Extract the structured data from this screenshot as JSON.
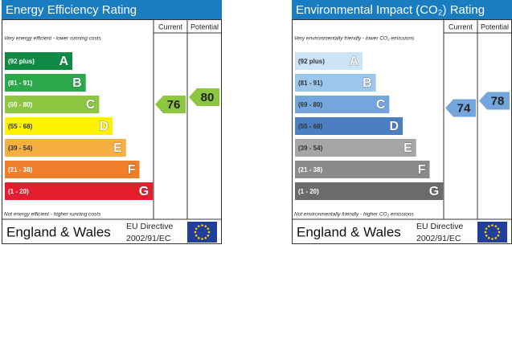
{
  "panels": [
    {
      "title": "Energy Efficiency Rating",
      "columns": [
        "Current",
        "Potential"
      ],
      "top_label": "Very energy efficient - lower running costs",
      "bottom_label": "Not energy efficient - higher running costs",
      "bands": [
        {
          "range": "(92 plus)",
          "letter": "A",
          "color": "#0f8a44",
          "text_color": "#fff"
        },
        {
          "range": "(81 - 91)",
          "letter": "B",
          "color": "#2aa84a",
          "text_color": "#fff"
        },
        {
          "range": "(69 - 80)",
          "letter": "C",
          "color": "#8dc63f",
          "text_color": "#fff"
        },
        {
          "range": "(55 - 68)",
          "letter": "D",
          "color": "#fff200",
          "text_color": "#333"
        },
        {
          "range": "(39 - 54)",
          "letter": "E",
          "color": "#f6b042",
          "text_color": "#333"
        },
        {
          "range": "(21 - 38)",
          "letter": "F",
          "color": "#ef7d29",
          "text_color": "#fff"
        },
        {
          "range": "(1 - 20)",
          "letter": "G",
          "color": "#e41e2d",
          "text_color": "#fff"
        }
      ],
      "current": {
        "value": 76,
        "color": "#8dc63f"
      },
      "potential": {
        "value": 80,
        "color": "#8dc63f"
      },
      "footer": {
        "region": "England & Wales",
        "directive": [
          "EU Directive",
          "2002/91/EC"
        ]
      }
    },
    {
      "title": "Environmental Impact (CO₂) Rating",
      "columns": [
        "Current",
        "Potential"
      ],
      "top_label": "Very environmentally friendly - lower CO₂ emissions",
      "bottom_label": "Not environmentally friendly - higher CO₂ emissions",
      "bands": [
        {
          "range": "(92 plus)",
          "letter": "A",
          "color": "#cde3f6",
          "text_color": "#333"
        },
        {
          "range": "(81 - 91)",
          "letter": "B",
          "color": "#9cc6ec",
          "text_color": "#333"
        },
        {
          "range": "(69 - 80)",
          "letter": "C",
          "color": "#72a6dc",
          "text_color": "#333"
        },
        {
          "range": "(55 - 68)",
          "letter": "D",
          "color": "#4c7ec2",
          "text_color": "#333"
        },
        {
          "range": "(39 - 54)",
          "letter": "E",
          "color": "#a6a6a6",
          "text_color": "#333"
        },
        {
          "range": "(21 - 38)",
          "letter": "F",
          "color": "#8a8a8a",
          "text_color": "#fff"
        },
        {
          "range": "(1 - 20)",
          "letter": "G",
          "color": "#6b6b6b",
          "text_color": "#fff"
        }
      ],
      "current": {
        "value": 74,
        "color": "#72a6dc"
      },
      "potential": {
        "value": 78,
        "color": "#72a6dc"
      },
      "footer": {
        "region": "England & Wales",
        "directive": [
          "EU Directive",
          "2002/91/EC"
        ]
      }
    }
  ]
}
